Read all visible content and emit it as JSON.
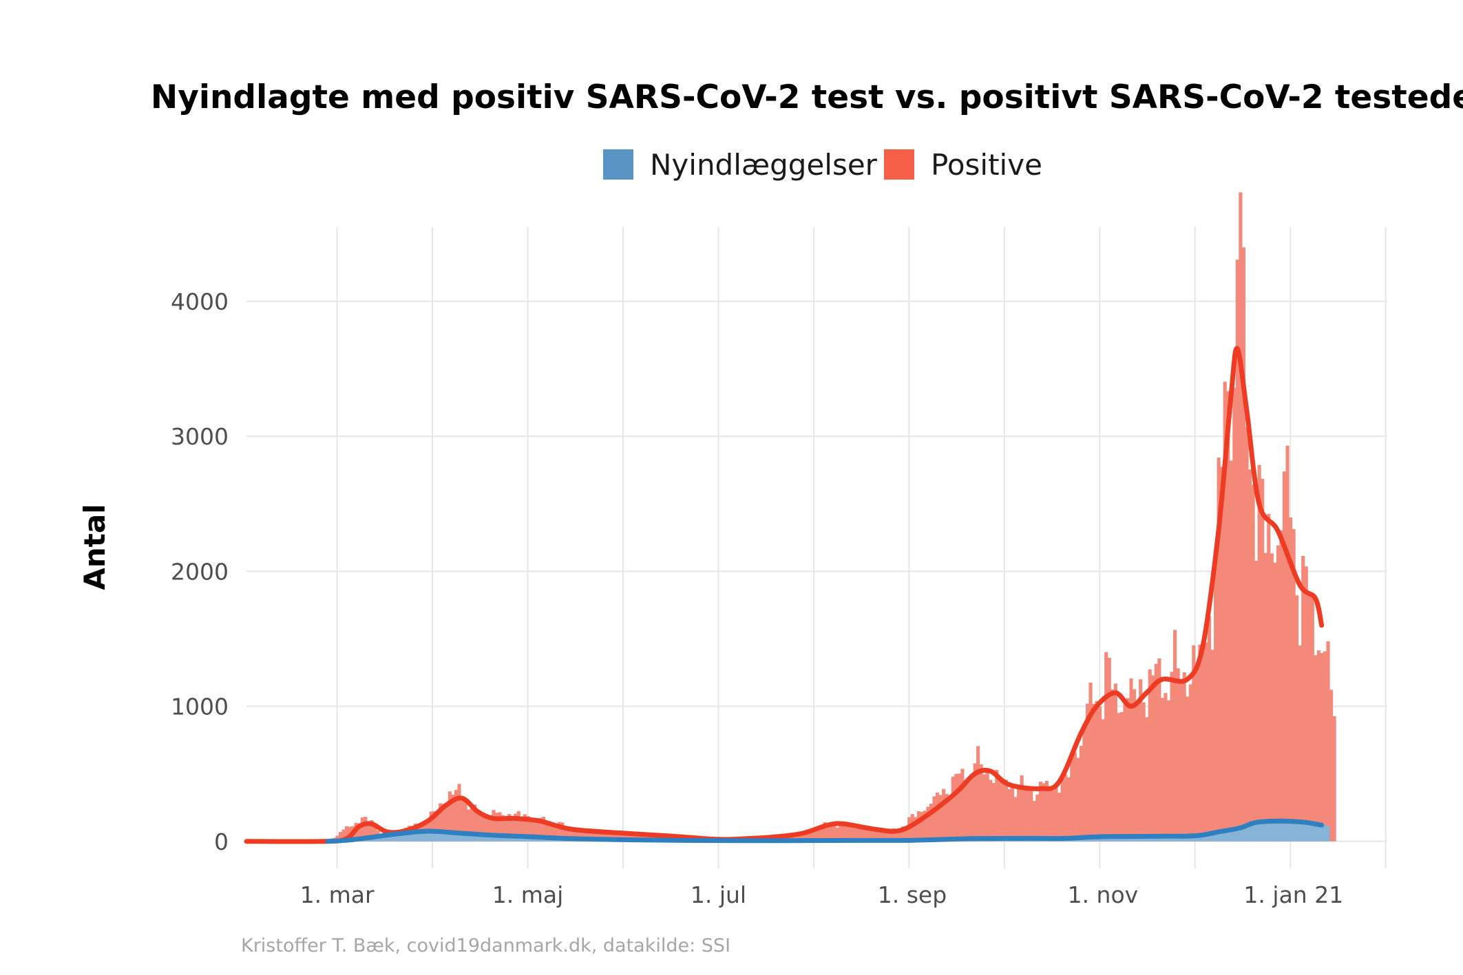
{
  "chart_data": {
    "type": "bar",
    "title": "Nyindlagte med positiv SARS-CoV-2 test vs. positivt SARS-CoV-2 testede",
    "ylabel": "Antal",
    "xlabel": "",
    "caption": "Kristoffer T. Bæk, covid19danmark.dk, datakilde: SSI",
    "legend_position": "top",
    "grid": true,
    "colors": {
      "positive_bars": "#f4897a",
      "positive_line": "#ee3b23",
      "hosp_bars": "#86b3d6",
      "hosp_line": "#2f80c0",
      "legend_hosp": "#5a94c5",
      "legend_positive": "#f55f47",
      "grid": "#e6e6e6"
    },
    "x_range": [
      "2020-02-01",
      "2021-01-31"
    ],
    "ylim": [
      -200,
      4550
    ],
    "yticks": [
      0,
      1000,
      2000,
      3000,
      4000
    ],
    "ytick_labels": [
      "0",
      "1000",
      "2000",
      "3000",
      "4000"
    ],
    "xticks": [
      "2020-03-01",
      "2020-05-01",
      "2020-07-01",
      "2020-09-01",
      "2020-11-01",
      "2021-01-01"
    ],
    "xtick_labels": [
      "1. mar",
      "1. maj",
      "1. jul",
      "1. sep",
      "1. nov",
      "1. jan 21"
    ],
    "series": [
      {
        "name": "Nyindlæggelser",
        "kind": "daily",
        "anchors": [
          [
            "2020-02-27",
            0
          ],
          [
            "2020-03-05",
            15
          ],
          [
            "2020-03-12",
            40
          ],
          [
            "2020-03-20",
            70
          ],
          [
            "2020-03-27",
            90
          ],
          [
            "2020-04-05",
            70
          ],
          [
            "2020-04-15",
            50
          ],
          [
            "2020-05-01",
            35
          ],
          [
            "2020-05-15",
            20
          ],
          [
            "2020-06-01",
            12
          ],
          [
            "2020-06-15",
            8
          ],
          [
            "2020-07-01",
            5
          ],
          [
            "2020-07-20",
            5
          ],
          [
            "2020-08-10",
            8
          ],
          [
            "2020-08-25",
            8
          ],
          [
            "2020-09-10",
            15
          ],
          [
            "2020-09-25",
            25
          ],
          [
            "2020-10-10",
            25
          ],
          [
            "2020-10-25",
            30
          ],
          [
            "2020-11-05",
            38
          ],
          [
            "2020-11-20",
            40
          ],
          [
            "2020-12-01",
            45
          ],
          [
            "2020-12-08",
            80
          ],
          [
            "2020-12-15",
            120
          ],
          [
            "2020-12-22",
            160
          ],
          [
            "2021-01-01",
            165
          ],
          [
            "2021-01-08",
            140
          ],
          [
            "2021-01-12",
            115
          ]
        ]
      },
      {
        "name": "Nyindlæggelser",
        "kind": "smooth",
        "anchors": [
          [
            "2020-02-27",
            0
          ],
          [
            "2020-03-05",
            10
          ],
          [
            "2020-03-12",
            30
          ],
          [
            "2020-03-20",
            55
          ],
          [
            "2020-03-30",
            75
          ],
          [
            "2020-04-10",
            60
          ],
          [
            "2020-04-20",
            45
          ],
          [
            "2020-05-01",
            35
          ],
          [
            "2020-05-15",
            20
          ],
          [
            "2020-06-01",
            12
          ],
          [
            "2020-06-20",
            7
          ],
          [
            "2020-07-15",
            5
          ],
          [
            "2020-08-15",
            7
          ],
          [
            "2020-09-01",
            8
          ],
          [
            "2020-09-20",
            20
          ],
          [
            "2020-10-10",
            22
          ],
          [
            "2020-10-20",
            22
          ],
          [
            "2020-11-01",
            35
          ],
          [
            "2020-11-20",
            38
          ],
          [
            "2020-12-01",
            42
          ],
          [
            "2020-12-08",
            70
          ],
          [
            "2020-12-15",
            100
          ],
          [
            "2020-12-20",
            140
          ],
          [
            "2020-12-28",
            150
          ],
          [
            "2021-01-05",
            140
          ],
          [
            "2021-01-10",
            120
          ]
        ]
      },
      {
        "name": "Positive",
        "kind": "daily",
        "anchors": [
          [
            "2020-02-27",
            0
          ],
          [
            "2020-03-08",
            160
          ],
          [
            "2020-03-12",
            150
          ],
          [
            "2020-03-15",
            60
          ],
          [
            "2020-03-23",
            90
          ],
          [
            "2020-03-30",
            160
          ],
          [
            "2020-04-04",
            300
          ],
          [
            "2020-04-09",
            380
          ],
          [
            "2020-04-14",
            220
          ],
          [
            "2020-04-20",
            200
          ],
          [
            "2020-04-27",
            200
          ],
          [
            "2020-05-05",
            160
          ],
          [
            "2020-05-15",
            100
          ],
          [
            "2020-06-01",
            60
          ],
          [
            "2020-06-15",
            45
          ],
          [
            "2020-07-01",
            20
          ],
          [
            "2020-07-10",
            25
          ],
          [
            "2020-07-20",
            40
          ],
          [
            "2020-07-28",
            60
          ],
          [
            "2020-08-05",
            120
          ],
          [
            "2020-08-12",
            130
          ],
          [
            "2020-08-20",
            90
          ],
          [
            "2020-08-27",
            80
          ],
          [
            "2020-09-05",
            250
          ],
          [
            "2020-09-15",
            450
          ],
          [
            "2020-09-22",
            580
          ],
          [
            "2020-10-01",
            420
          ],
          [
            "2020-10-10",
            380
          ],
          [
            "2020-10-20",
            440
          ],
          [
            "2020-10-28",
            1000
          ],
          [
            "2020-11-02",
            1200
          ],
          [
            "2020-11-07",
            1050
          ],
          [
            "2020-11-12",
            1100
          ],
          [
            "2020-11-18",
            1200
          ],
          [
            "2020-11-25",
            1250
          ],
          [
            "2020-12-01",
            1280
          ],
          [
            "2020-12-06",
            1750
          ],
          [
            "2020-12-10",
            3100
          ],
          [
            "2020-12-13",
            3800
          ],
          [
            "2020-12-15",
            4300
          ],
          [
            "2020-12-17",
            3300
          ],
          [
            "2020-12-20",
            2500
          ],
          [
            "2020-12-25",
            2200
          ],
          [
            "2020-12-30",
            2600
          ],
          [
            "2021-01-03",
            1900
          ],
          [
            "2021-01-07",
            1700
          ],
          [
            "2021-01-10",
            1500
          ],
          [
            "2021-01-14",
            1000
          ]
        ]
      },
      {
        "name": "Positive",
        "kind": "smooth",
        "anchors": [
          [
            "2020-02-01",
            0
          ],
          [
            "2020-02-26",
            0
          ],
          [
            "2020-03-04",
            20
          ],
          [
            "2020-03-08",
            110
          ],
          [
            "2020-03-12",
            130
          ],
          [
            "2020-03-17",
            70
          ],
          [
            "2020-03-23",
            80
          ],
          [
            "2020-03-30",
            150
          ],
          [
            "2020-04-05",
            270
          ],
          [
            "2020-04-10",
            320
          ],
          [
            "2020-04-15",
            220
          ],
          [
            "2020-04-20",
            170
          ],
          [
            "2020-04-27",
            170
          ],
          [
            "2020-05-05",
            150
          ],
          [
            "2020-05-15",
            90
          ],
          [
            "2020-06-01",
            60
          ],
          [
            "2020-06-15",
            40
          ],
          [
            "2020-07-01",
            15
          ],
          [
            "2020-07-10",
            20
          ],
          [
            "2020-07-20",
            35
          ],
          [
            "2020-07-28",
            60
          ],
          [
            "2020-08-05",
            120
          ],
          [
            "2020-08-10",
            130
          ],
          [
            "2020-08-20",
            90
          ],
          [
            "2020-08-28",
            80
          ],
          [
            "2020-09-05",
            180
          ],
          [
            "2020-09-15",
            360
          ],
          [
            "2020-09-21",
            500
          ],
          [
            "2020-09-26",
            520
          ],
          [
            "2020-10-02",
            420
          ],
          [
            "2020-10-12",
            390
          ],
          [
            "2020-10-18",
            440
          ],
          [
            "2020-10-25",
            800
          ],
          [
            "2020-10-30",
            1000
          ],
          [
            "2020-11-05",
            1100
          ],
          [
            "2020-11-10",
            1000
          ],
          [
            "2020-11-15",
            1100
          ],
          [
            "2020-11-20",
            1200
          ],
          [
            "2020-11-28",
            1200
          ],
          [
            "2020-12-03",
            1450
          ],
          [
            "2020-12-08",
            2300
          ],
          [
            "2020-12-12",
            3300
          ],
          [
            "2020-12-14",
            3650
          ],
          [
            "2020-12-17",
            3200
          ],
          [
            "2020-12-21",
            2500
          ],
          [
            "2020-12-27",
            2300
          ],
          [
            "2021-01-03",
            1900
          ],
          [
            "2021-01-08",
            1800
          ],
          [
            "2021-01-10",
            1600
          ]
        ]
      }
    ]
  }
}
